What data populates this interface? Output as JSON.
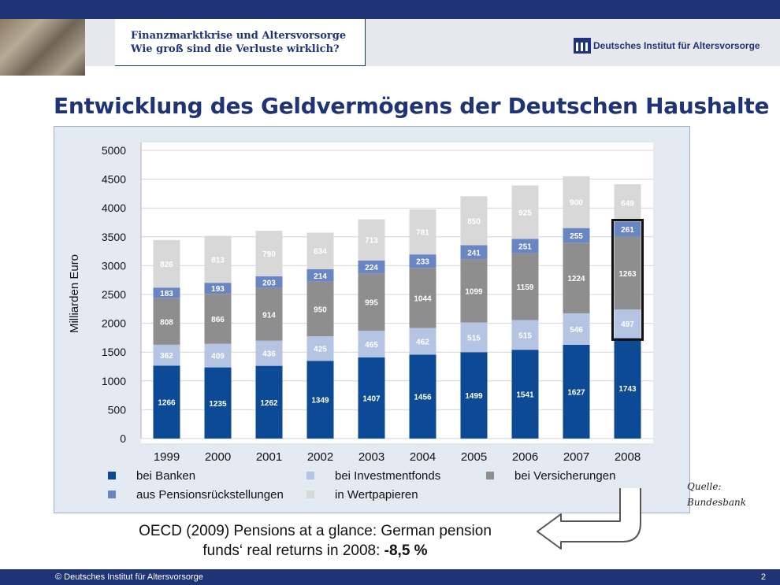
{
  "header": {
    "line1": "Finanzmarktkrise und Altersvorsorge",
    "line2": "Wie groß sind die Verluste wirklich?",
    "logo_text": "Deutsches Institut für Altersvorsorge"
  },
  "title": "Entwicklung des Geldvermögens der Deutschen Haushalte",
  "source": {
    "line1": "Quelle:",
    "line2": "Bundesbank"
  },
  "oecd": {
    "line1": "OECD (2009) Pensions at a glance: German pension",
    "line2_prefix": "funds‘ real returns in 2008: ",
    "line2_value": "-8,5 %"
  },
  "footer": {
    "copyright": "© Deutsches Institut für Altersvorsorge",
    "page": "2"
  },
  "chart_data": {
    "type": "bar",
    "stacked": true,
    "ylabel": "Milliarden Euro",
    "ylim": [
      0,
      5000
    ],
    "yticks": [
      0,
      500,
      1000,
      1500,
      2000,
      2500,
      3000,
      3500,
      4000,
      4500,
      5000
    ],
    "grid": true,
    "categories": [
      "1999",
      "2000",
      "2001",
      "2002",
      "2003",
      "2004",
      "2005",
      "2006",
      "2007",
      "2008"
    ],
    "highlight_category": "2008",
    "legend_placement": "bottom",
    "series": [
      {
        "name": "bei Banken",
        "color": "#0d4a96",
        "values": [
          1266,
          1235,
          1262,
          1349,
          1407,
          1456,
          1499,
          1541,
          1627,
          1743
        ]
      },
      {
        "name": "bei Investmentfonds",
        "color": "#b6c4e4",
        "values": [
          362,
          409,
          436,
          425,
          465,
          462,
          515,
          515,
          546,
          497
        ]
      },
      {
        "name": "bei Versicherungen",
        "color": "#8e8e8e",
        "values": [
          808,
          866,
          914,
          950,
          995,
          1044,
          1099,
          1159,
          1224,
          1263
        ]
      },
      {
        "name": "aus Pensionsrückstellungen",
        "color": "#6a86c2",
        "values": [
          183,
          193,
          203,
          214,
          224,
          233,
          241,
          251,
          255,
          261
        ]
      },
      {
        "name": "in Wertpapieren",
        "color": "#d8d8d8",
        "values": [
          826,
          813,
          790,
          634,
          713,
          781,
          850,
          925,
          900,
          649
        ]
      }
    ]
  }
}
